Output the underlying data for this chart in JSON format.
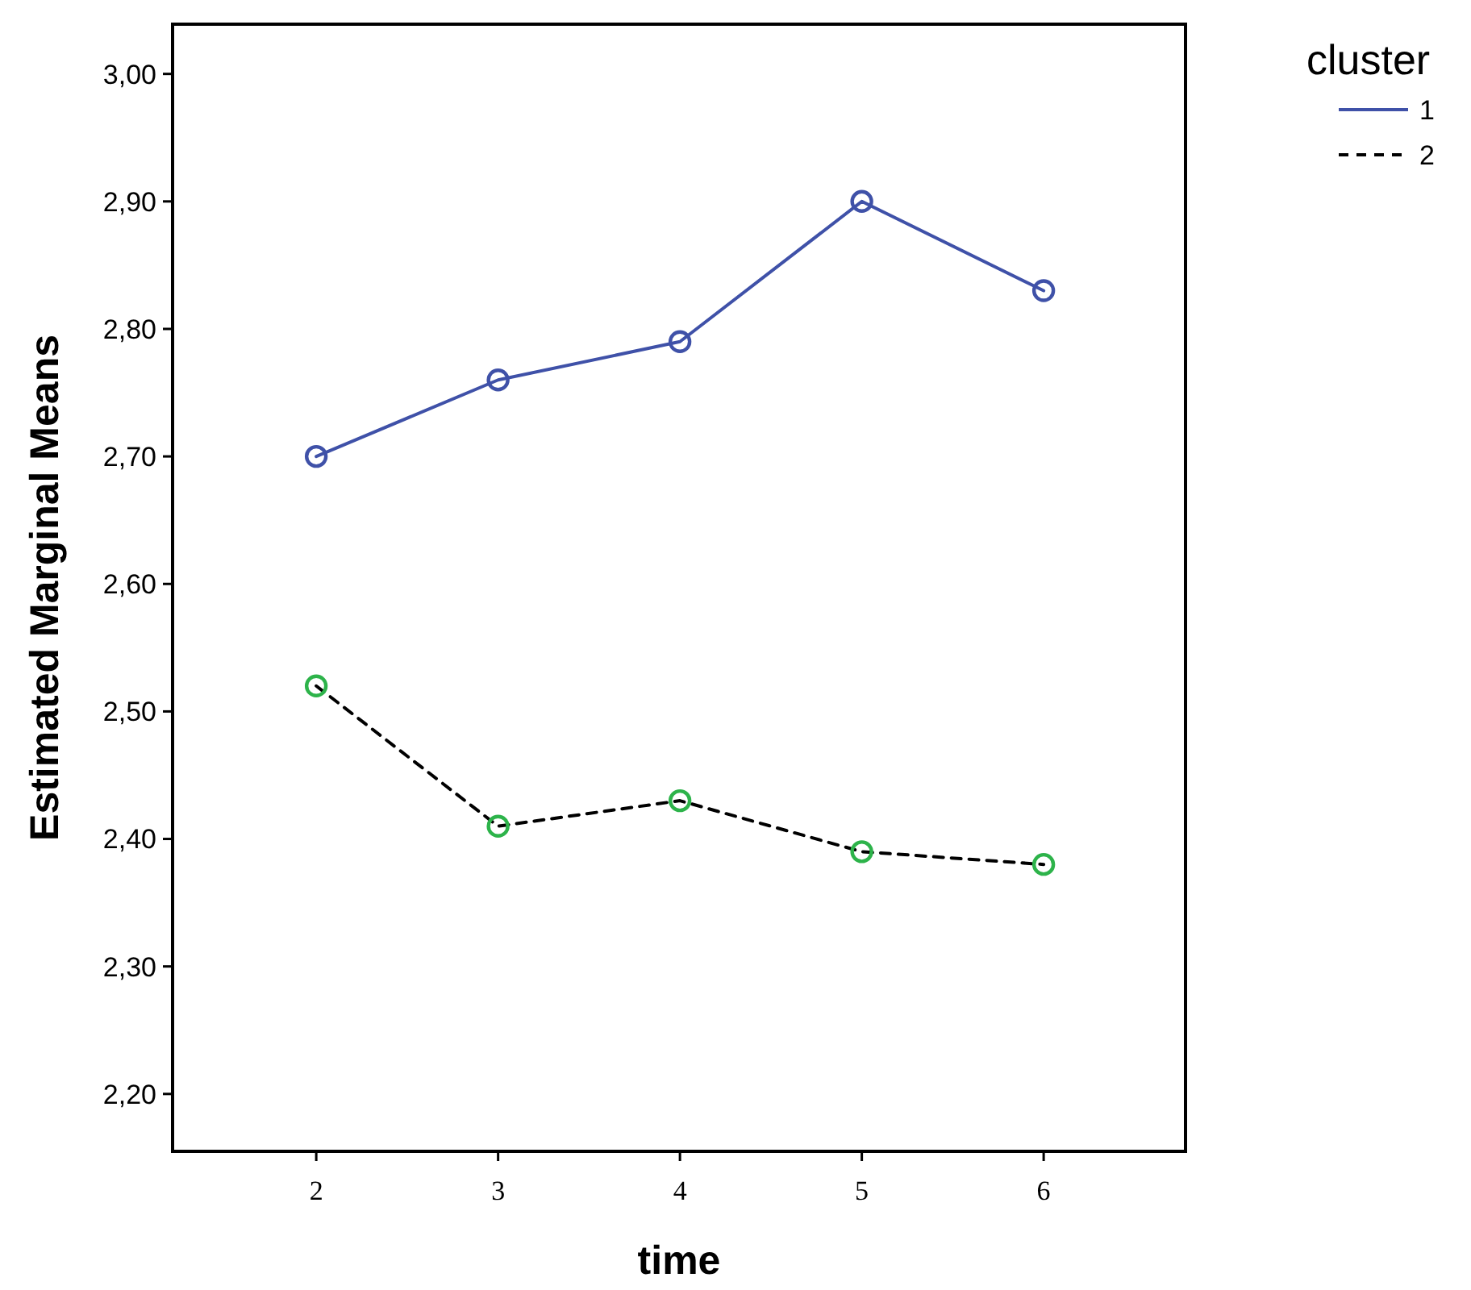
{
  "chart_data": {
    "type": "line",
    "xlabel": "time",
    "ylabel": "Estimated Marginal Means",
    "legend_title": "cluster",
    "x": [
      2,
      3,
      4,
      5,
      6
    ],
    "xlim": [
      1.21,
      6.78
    ],
    "xticks": [
      2,
      3,
      4,
      5,
      6
    ],
    "ylim": [
      2.155,
      3.039
    ],
    "yticks": [
      {
        "value": 2.2,
        "label": "2,20"
      },
      {
        "value": 2.3,
        "label": "2,30"
      },
      {
        "value": 2.4,
        "label": "2,40"
      },
      {
        "value": 2.5,
        "label": "2,50"
      },
      {
        "value": 2.6,
        "label": "2,60"
      },
      {
        "value": 2.7,
        "label": "2,70"
      },
      {
        "value": 2.8,
        "label": "2,80"
      },
      {
        "value": 2.9,
        "label": "2,90"
      },
      {
        "value": 3.0,
        "label": "3,00"
      }
    ],
    "grid": false,
    "legend": "top right",
    "marker": "circle",
    "series": [
      {
        "name": "1",
        "color": "#3f51a8",
        "line_style": "solid",
        "values": [
          2.7,
          2.76,
          2.79,
          2.9,
          2.83
        ]
      },
      {
        "name": "2",
        "color": "#000000",
        "colors": [
          "#2db34a",
          "#2db34a",
          "#2db34a",
          "#2db34a",
          "#2db34a"
        ],
        "line_style": "dashed",
        "values": [
          2.52,
          2.41,
          2.43,
          2.39,
          2.38
        ]
      }
    ]
  }
}
